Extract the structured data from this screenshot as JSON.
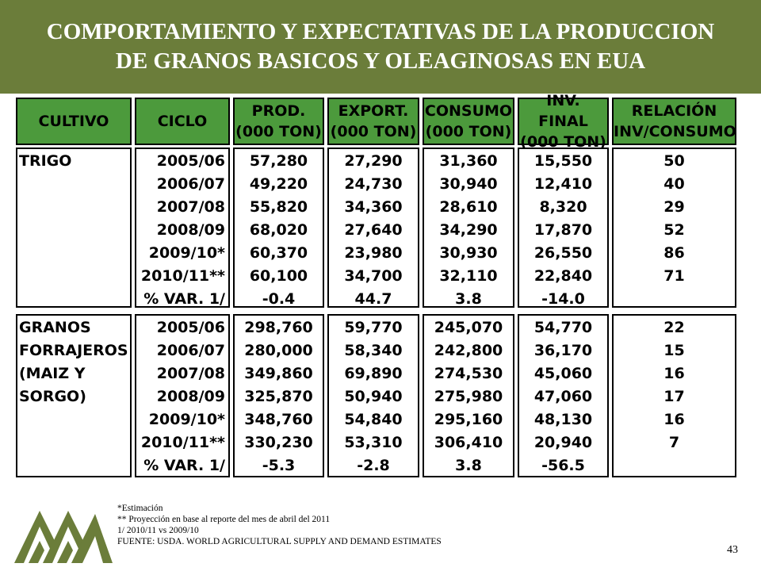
{
  "title": {
    "line1": "COMPORTAMIENTO Y EXPECTATIVAS DE LA PRODUCCION",
    "line2": "DE GRANOS BASICOS Y OLEAGINOSAS EN EUA"
  },
  "table": {
    "headers": [
      {
        "l1": "CULTIVO",
        "l2": ""
      },
      {
        "l1": "CICLO",
        "l2": ""
      },
      {
        "l1": "PROD.",
        "l2": "(000 TON)"
      },
      {
        "l1": "EXPORT.",
        "l2": "(000 TON)"
      },
      {
        "l1": "CONSUMO",
        "l2": "(000 TON)"
      },
      {
        "l1": "INV. FINAL",
        "l2": "(000 TON)"
      },
      {
        "l1": "RELACIÓN",
        "l2": "INV/CONSUMO"
      }
    ],
    "groups": [
      {
        "crop": [
          "TRIGO"
        ],
        "ciclo": [
          "2005/06",
          "2006/07",
          "2007/08",
          "2008/09",
          "2009/10*",
          "2010/11**",
          "% VAR. 1/"
        ],
        "prod": [
          "57,280",
          "49,220",
          "55,820",
          "68,020",
          "60,370",
          "60,100",
          "-0.4"
        ],
        "export": [
          "27,290",
          "24,730",
          "34,360",
          "27,640",
          "23,980",
          "34,700",
          "44.7"
        ],
        "consumo": [
          "31,360",
          "30,940",
          "28,610",
          "34,290",
          "30,930",
          "32,110",
          "3.8"
        ],
        "inv_final": [
          "15,550",
          "12,410",
          "8,320",
          "17,870",
          "26,550",
          "22,840",
          "-14.0"
        ],
        "relacion": [
          "50",
          "40",
          "29",
          "52",
          "86",
          "71",
          ""
        ]
      },
      {
        "crop": [
          "GRANOS",
          "FORRAJEROS",
          "(MAIZ Y",
          "SORGO)"
        ],
        "ciclo": [
          "2005/06",
          "2006/07",
          "2007/08",
          "2008/09",
          "2009/10*",
          "2010/11**",
          "% VAR. 1/"
        ],
        "prod": [
          "298,760",
          "280,000",
          "349,860",
          "325,870",
          "348,760",
          "330,230",
          "-5.3"
        ],
        "export": [
          "59,770",
          "58,340",
          "69,890",
          "50,940",
          "54,840",
          "53,310",
          "-2.8"
        ],
        "consumo": [
          "245,070",
          "242,800",
          "274,530",
          "275,980",
          "295,160",
          "306,410",
          "3.8"
        ],
        "inv_final": [
          "54,770",
          "36,170",
          "45,060",
          "47,060",
          "48,130",
          "20,940",
          "-56.5"
        ],
        "relacion": [
          "22",
          "15",
          "16",
          "17",
          "16",
          "7",
          ""
        ]
      }
    ]
  },
  "notes": [
    "*Estimación",
    "** Proyección en base al reporte  del mes de abril del 2011",
    "1/ 2010/11 vs 2009/10",
    "FUENTE: USDA. WORLD AGRICULTURAL SUPPLY AND DEMAND ESTIMATES"
  ],
  "page_number": "43",
  "colors": {
    "title_band": "#6b7d3a",
    "header_fill": "#4c9a3c",
    "logo": "#6b7d3a"
  }
}
